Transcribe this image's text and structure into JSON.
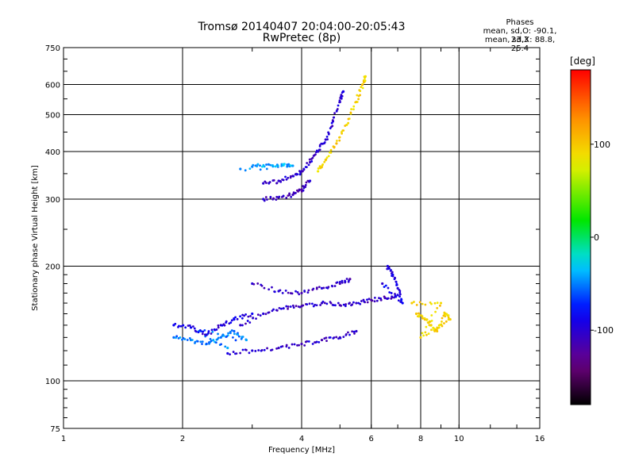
{
  "title_line1": "Tromsø 20140407 20:04:00-20:05:43",
  "title_line2": "RwPretec (8p)",
  "stats": {
    "heading": "Phases",
    "line_o": "mean, sd,O: -90.1, 23.3",
    "line_x": "mean, sd,X: 88.8, 25.4"
  },
  "colorbar": {
    "unit": "[deg]",
    "ticks": [
      "100",
      "0",
      "-100"
    ],
    "tick_values": [
      100,
      0,
      -100
    ],
    "range": [
      -180,
      180
    ],
    "colormap": "rainbow (black-purple-blue-cyan-green-yellow-red)"
  },
  "chart_data": {
    "type": "scatter",
    "xlabel": "Frequency [MHz]",
    "ylabel": "Stationary phase Virtual Height [km]",
    "xscale": "log",
    "yscale": "log",
    "xlim": [
      1,
      16
    ],
    "ylim": [
      75,
      750
    ],
    "x_ticks": [
      "1",
      "2",
      "4",
      "6",
      "8",
      "10",
      "16"
    ],
    "x_tick_values": [
      1,
      2,
      4,
      6,
      8,
      10,
      16
    ],
    "y_ticks": [
      "750",
      "600",
      "500",
      "400",
      "300",
      "200",
      "100",
      "75"
    ],
    "y_tick_values": [
      750,
      600,
      500,
      400,
      300,
      200,
      100,
      75
    ],
    "grid": true,
    "traces": [
      {
        "description": "O-mode F2 trace",
        "phase": -100,
        "points": [
          [
            3.2,
            330
          ],
          [
            3.5,
            335
          ],
          [
            3.8,
            345
          ],
          [
            4.0,
            355
          ],
          [
            4.2,
            375
          ],
          [
            4.4,
            400
          ],
          [
            4.6,
            430
          ],
          [
            4.8,
            480
          ],
          [
            5.0,
            540
          ],
          [
            5.1,
            575
          ]
        ]
      },
      {
        "description": "O-mode F1 lower trace",
        "phase": -110,
        "points": [
          [
            3.2,
            300
          ],
          [
            3.5,
            303
          ],
          [
            3.8,
            308
          ],
          [
            4.0,
            318
          ],
          [
            4.2,
            335
          ]
        ]
      },
      {
        "description": "X-mode F2 trace",
        "phase": 95,
        "points": [
          [
            4.4,
            355
          ],
          [
            4.6,
            380
          ],
          [
            4.9,
            420
          ],
          [
            5.2,
            470
          ],
          [
            5.5,
            540
          ],
          [
            5.7,
            600
          ],
          [
            5.8,
            630
          ]
        ]
      },
      {
        "description": "cyan upper cluster",
        "phase": -40,
        "points": [
          [
            3.0,
            365
          ],
          [
            3.3,
            370
          ],
          [
            3.6,
            368
          ],
          [
            3.8,
            367
          ],
          [
            2.8,
            360
          ]
        ]
      },
      {
        "description": "E/F1 region band (O-mode)",
        "phase": -105,
        "points": [
          [
            2.8,
            140
          ],
          [
            3.2,
            150
          ],
          [
            3.6,
            155
          ],
          [
            4.0,
            157
          ],
          [
            4.5,
            160
          ],
          [
            5.0,
            158
          ],
          [
            5.5,
            160
          ],
          [
            6.0,
            163
          ],
          [
            6.5,
            165
          ],
          [
            7.0,
            168
          ]
        ]
      },
      {
        "description": "E/F1 region upper band (O-mode)",
        "phase": -105,
        "points": [
          [
            3.0,
            180
          ],
          [
            3.5,
            172
          ],
          [
            4.0,
            170
          ],
          [
            4.5,
            175
          ],
          [
            5.0,
            180
          ],
          [
            5.3,
            185
          ]
        ]
      },
      {
        "description": "lower band (O-mode)",
        "phase": -100,
        "points": [
          [
            2.6,
            118
          ],
          [
            3.0,
            120
          ],
          [
            3.5,
            122
          ],
          [
            4.0,
            125
          ],
          [
            4.5,
            128
          ],
          [
            5.0,
            130
          ],
          [
            5.5,
            135
          ]
        ]
      },
      {
        "description": "low-frequency cyan cluster",
        "phase": -50,
        "points": [
          [
            1.9,
            130
          ],
          [
            2.1,
            128
          ],
          [
            2.3,
            125
          ],
          [
            2.5,
            130
          ],
          [
            2.7,
            135
          ],
          [
            2.9,
            128
          ],
          [
            2.2,
            135
          ],
          [
            2.6,
            122
          ]
        ]
      },
      {
        "description": "blue low-frequency cluster",
        "phase": -95,
        "points": [
          [
            1.9,
            140
          ],
          [
            2.1,
            138
          ],
          [
            2.3,
            132
          ],
          [
            2.5,
            140
          ],
          [
            2.7,
            145
          ],
          [
            3.0,
            150
          ]
        ]
      },
      {
        "description": "X-mode cluster near 8-9.5 MHz",
        "phase": 95,
        "points": [
          [
            7.8,
            150
          ],
          [
            8.2,
            145
          ],
          [
            8.5,
            140
          ],
          [
            8.8,
            135
          ],
          [
            9.2,
            150
          ],
          [
            9.5,
            145
          ],
          [
            8.0,
            130
          ],
          [
            9.0,
            160
          ],
          [
            7.6,
            160
          ]
        ]
      },
      {
        "description": "trace near 6.5-7 MHz",
        "phase": -90,
        "points": [
          [
            6.6,
            200
          ],
          [
            6.8,
            190
          ],
          [
            7.0,
            175
          ],
          [
            7.2,
            160
          ],
          [
            6.4,
            180
          ]
        ]
      }
    ]
  }
}
